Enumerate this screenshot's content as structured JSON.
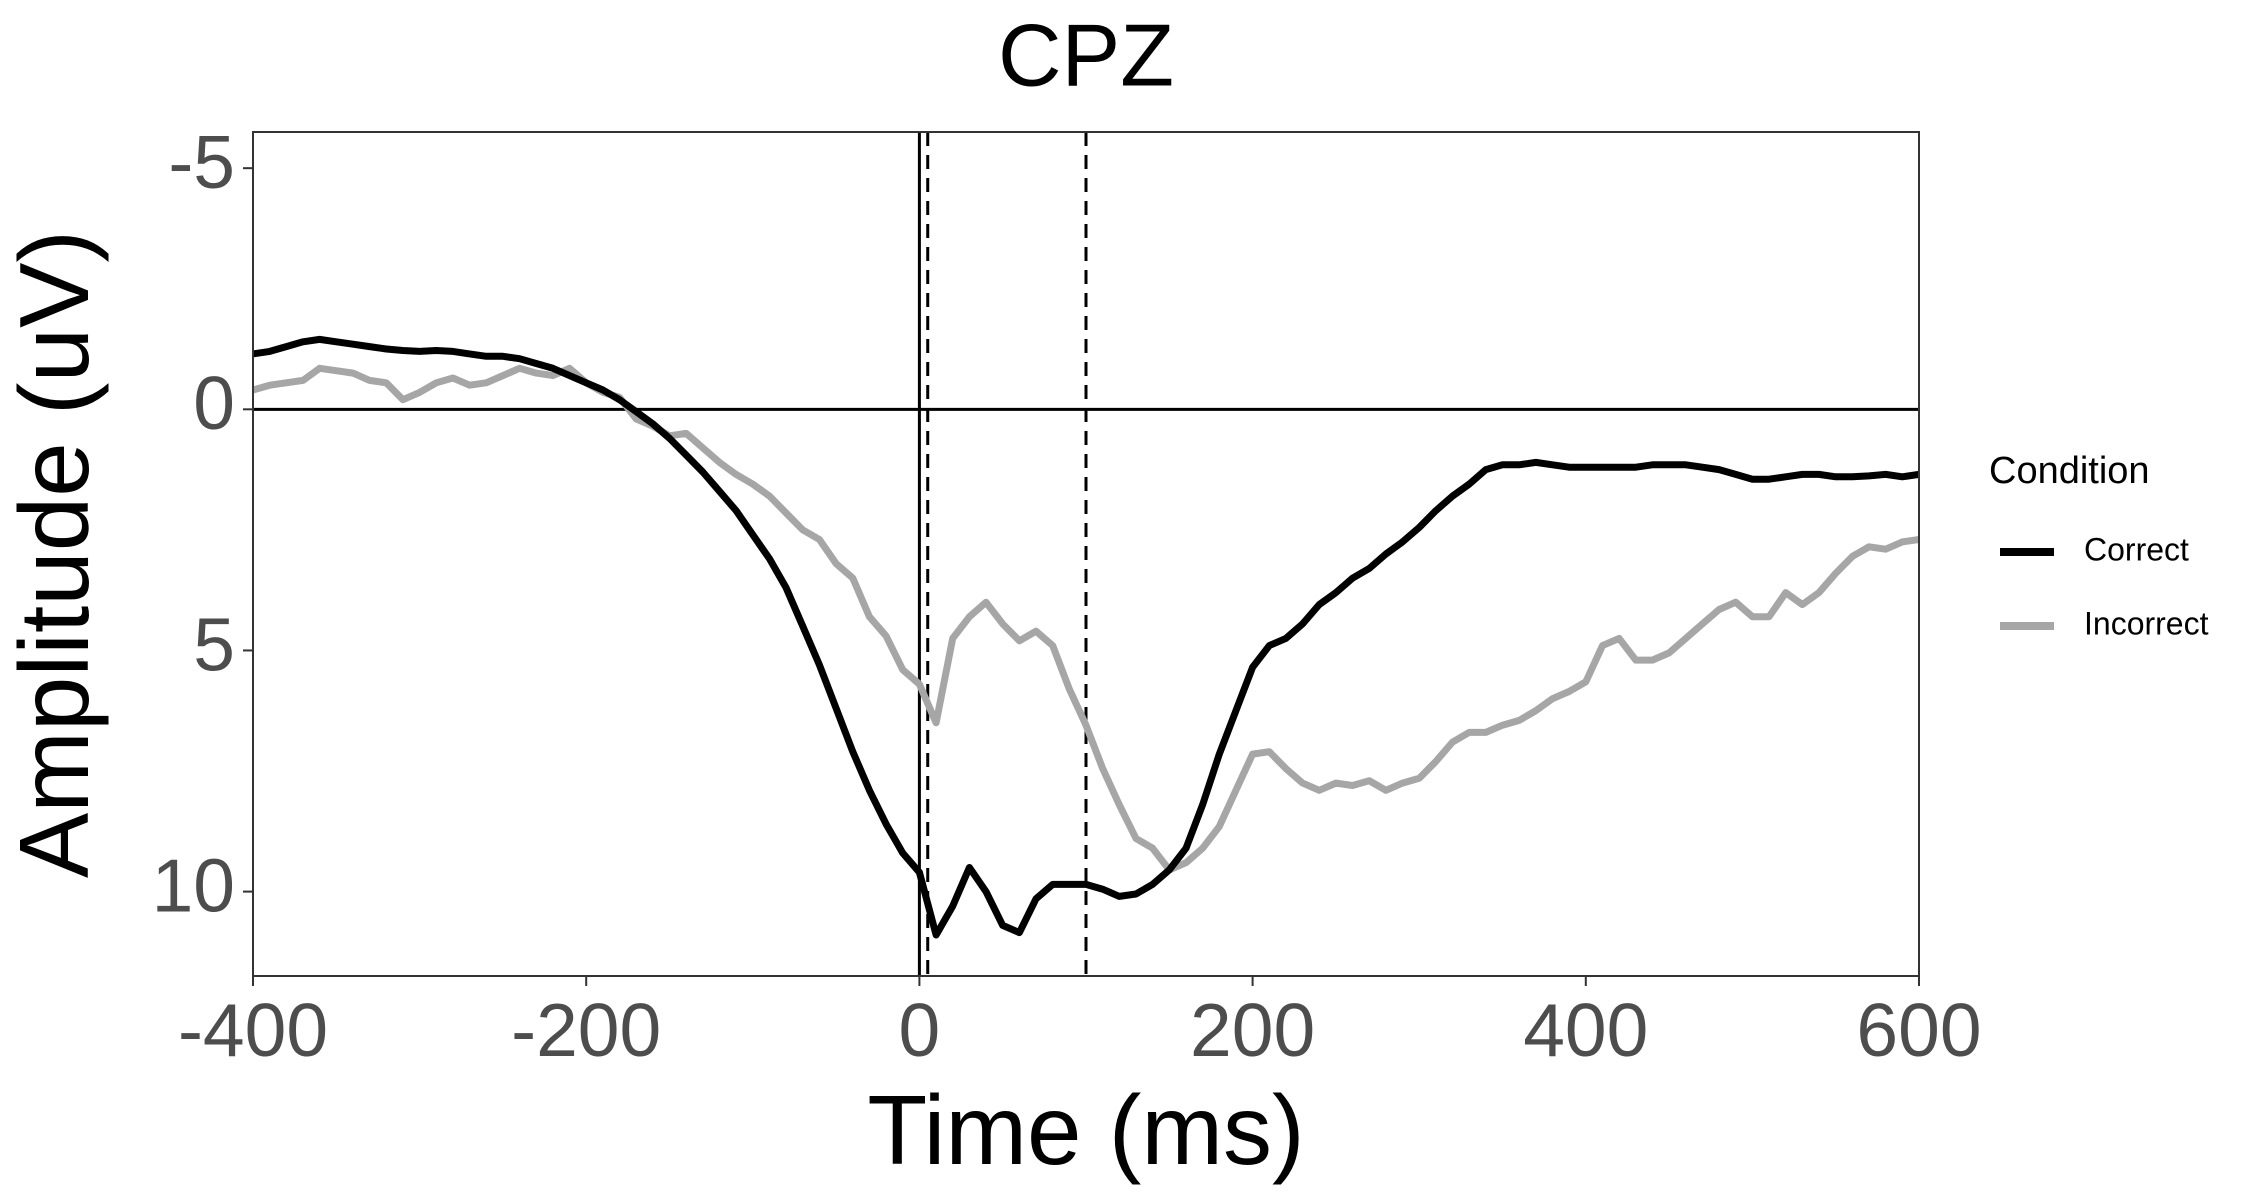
{
  "chart_data": {
    "type": "line",
    "title": "CPZ",
    "x_label": "Time (ms)",
    "y_label": "Amplitude (uV)",
    "x": [
      -400,
      -390,
      -380,
      -370,
      -360,
      -350,
      -340,
      -330,
      -320,
      -310,
      -300,
      -290,
      -280,
      -270,
      -260,
      -250,
      -240,
      -230,
      -220,
      -210,
      -200,
      -190,
      -180,
      -170,
      -160,
      -150,
      -140,
      -130,
      -120,
      -110,
      -100,
      -90,
      -80,
      -70,
      -60,
      -50,
      -40,
      -30,
      -20,
      -10,
      0,
      10,
      20,
      30,
      40,
      50,
      60,
      70,
      80,
      90,
      100,
      110,
      120,
      130,
      140,
      150,
      160,
      170,
      180,
      190,
      200,
      210,
      220,
      230,
      240,
      250,
      260,
      270,
      280,
      290,
      300,
      310,
      320,
      330,
      340,
      350,
      360,
      370,
      380,
      390,
      400,
      410,
      420,
      430,
      440,
      450,
      460,
      470,
      480,
      490,
      500,
      510,
      520,
      530,
      540,
      550,
      560,
      570,
      580,
      590,
      600
    ],
    "series": [
      {
        "name": "Correct",
        "color": "#000000",
        "values": [
          -1.15,
          -1.2,
          -1.3,
          -1.4,
          -1.45,
          -1.4,
          -1.35,
          -1.3,
          -1.25,
          -1.22,
          -1.2,
          -1.22,
          -1.2,
          -1.15,
          -1.1,
          -1.1,
          -1.05,
          -0.95,
          -0.85,
          -0.7,
          -0.55,
          -0.4,
          -0.2,
          0.05,
          0.3,
          0.6,
          0.95,
          1.3,
          1.7,
          2.1,
          2.6,
          3.1,
          3.7,
          4.5,
          5.3,
          6.2,
          7.1,
          7.9,
          8.6,
          9.2,
          9.6,
          10.9,
          10.3,
          9.5,
          10.0,
          10.7,
          10.85,
          10.15,
          9.85,
          9.85,
          9.85,
          9.95,
          10.1,
          10.05,
          9.85,
          9.55,
          9.1,
          8.2,
          7.15,
          6.25,
          5.35,
          4.9,
          4.75,
          4.45,
          4.05,
          3.8,
          3.5,
          3.3,
          3.0,
          2.75,
          2.45,
          2.1,
          1.8,
          1.55,
          1.25,
          1.15,
          1.15,
          1.1,
          1.15,
          1.2,
          1.2,
          1.2,
          1.2,
          1.2,
          1.15,
          1.15,
          1.15,
          1.2,
          1.25,
          1.35,
          1.45,
          1.45,
          1.4,
          1.35,
          1.35,
          1.4,
          1.4,
          1.38,
          1.35,
          1.4,
          1.35
        ]
      },
      {
        "name": "Incorrect",
        "color": "#a6a6a6",
        "values": [
          -0.4,
          -0.5,
          -0.55,
          -0.6,
          -0.85,
          -0.8,
          -0.75,
          -0.6,
          -0.55,
          -0.2,
          -0.35,
          -0.55,
          -0.65,
          -0.5,
          -0.55,
          -0.7,
          -0.85,
          -0.75,
          -0.7,
          -0.85,
          -0.55,
          -0.35,
          -0.25,
          0.2,
          0.35,
          0.55,
          0.5,
          0.8,
          1.1,
          1.35,
          1.55,
          1.8,
          2.15,
          2.5,
          2.7,
          3.2,
          3.5,
          4.3,
          4.7,
          5.4,
          5.7,
          6.5,
          4.75,
          4.3,
          4.0,
          4.45,
          4.8,
          4.6,
          4.9,
          5.8,
          6.55,
          7.45,
          8.2,
          8.9,
          9.1,
          9.55,
          9.4,
          9.1,
          8.65,
          7.9,
          7.15,
          7.1,
          7.45,
          7.75,
          7.9,
          7.75,
          7.8,
          7.7,
          7.9,
          7.75,
          7.65,
          7.3,
          6.9,
          6.7,
          6.7,
          6.55,
          6.45,
          6.25,
          6.0,
          5.85,
          5.65,
          4.9,
          4.75,
          5.2,
          5.2,
          5.05,
          4.75,
          4.45,
          4.15,
          4.0,
          4.3,
          4.3,
          3.8,
          4.05,
          3.8,
          3.4,
          3.05,
          2.85,
          2.9,
          2.75,
          2.7
        ]
      }
    ],
    "xlim": [
      -400,
      600
    ],
    "xticks": [
      -400,
      -200,
      0,
      200,
      400,
      600
    ],
    "ylim": [
      -5.75,
      11.75
    ],
    "yticks": [
      -5,
      0,
      5,
      10
    ],
    "y_reversed": true,
    "hline": 0,
    "vlines": [
      {
        "x": 0,
        "dashed": false
      },
      {
        "x": 5,
        "dashed": true
      },
      {
        "x": 100,
        "dashed": true
      }
    ],
    "legend_title": "Condition",
    "legend": "right"
  }
}
